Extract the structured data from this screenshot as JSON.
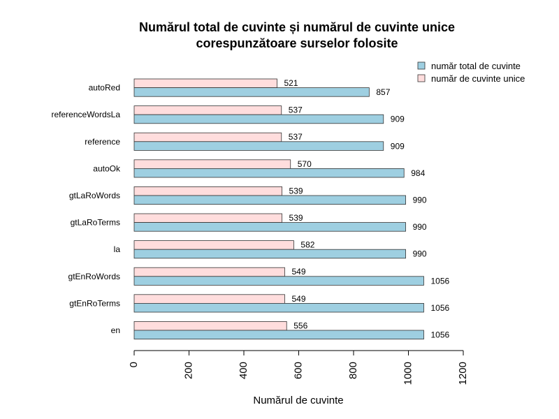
{
  "chart_data": {
    "type": "bar",
    "orientation": "horizontal",
    "title": [
      "Numărul total de cuvinte și numărul de cuvinte unice",
      "corespunzătoare surselor folosite"
    ],
    "xlabel": "Numărul de cuvinte",
    "ylabel": "",
    "xlim": [
      0,
      1200
    ],
    "xticks": [
      0,
      200,
      400,
      600,
      800,
      1000,
      1200
    ],
    "grid": false,
    "legend_position": "top-right",
    "categories": [
      "autoRed",
      "referenceWordsLa",
      "reference",
      "autoOk",
      "gtLaRoWords",
      "gtLaRoTerms",
      "la",
      "gtEnRoWords",
      "gtEnRoTerms",
      "en"
    ],
    "series": [
      {
        "name": "număr total de cuvinte",
        "color": "#9ecfe1",
        "values": [
          857,
          909,
          909,
          984,
          990,
          990,
          990,
          1056,
          1056,
          1056
        ]
      },
      {
        "name": "număr de cuvinte unice",
        "color": "#ffdddd",
        "values": [
          521,
          537,
          537,
          570,
          539,
          539,
          582,
          549,
          549,
          556
        ]
      }
    ]
  }
}
